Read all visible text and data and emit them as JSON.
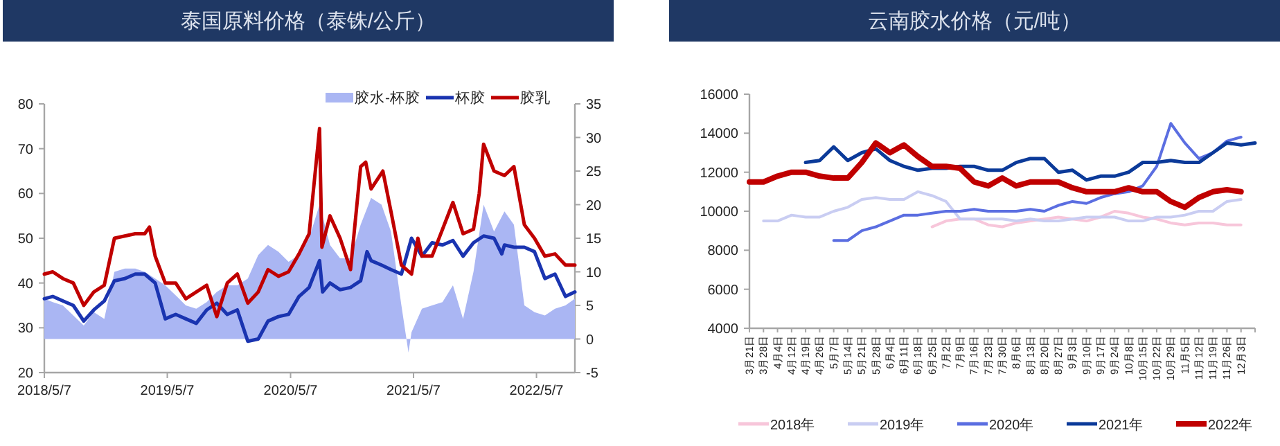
{
  "chart_data": [
    {
      "type": "line",
      "title": "泰国原料价格（泰铢/公斤）",
      "legend": "top right",
      "xlim": [
        "2018-05-07",
        "2022-08-29"
      ],
      "xticks": [
        {
          "value": "2018-05-07",
          "label": "2018/5/7"
        },
        {
          "value": "2019-05-07",
          "label": "2019/5/7"
        },
        {
          "value": "2020-05-07",
          "label": "2020/5/7"
        },
        {
          "value": "2021-05-07",
          "label": "2021/5/7"
        },
        {
          "value": "2022-05-07",
          "label": "2022/5/7"
        }
      ],
      "ylim": [
        20,
        80
      ],
      "yticks": [
        20,
        30,
        40,
        50,
        60,
        70,
        80
      ],
      "y2lim": [
        -5,
        35
      ],
      "y2ticks": [
        -5,
        0,
        5,
        10,
        15,
        20,
        25,
        30,
        35
      ],
      "series": [
        {
          "name": "胶水-杯胶",
          "type": "area",
          "axis": "y2",
          "color": "#aab6f3",
          "x": [
            "2018-05-07",
            "2018-06-01",
            "2018-07-01",
            "2018-08-01",
            "2018-09-01",
            "2018-10-01",
            "2018-11-01",
            "2018-12-01",
            "2019-01-01",
            "2019-02-01",
            "2019-03-01",
            "2019-04-01",
            "2019-05-01",
            "2019-06-01",
            "2019-07-01",
            "2019-08-01",
            "2019-09-01",
            "2019-10-01",
            "2019-11-01",
            "2019-12-01",
            "2020-01-01",
            "2020-02-01",
            "2020-03-01",
            "2020-04-01",
            "2020-05-01",
            "2020-06-01",
            "2020-07-01",
            "2020-08-01",
            "2020-09-01",
            "2020-10-01",
            "2020-11-01",
            "2020-12-01",
            "2021-01-01",
            "2021-02-01",
            "2021-03-01",
            "2021-04-01",
            "2021-04-22",
            "2021-05-01",
            "2021-06-01",
            "2021-07-01",
            "2021-08-01",
            "2021-09-01",
            "2021-10-01",
            "2021-11-01",
            "2021-12-01",
            "2022-01-01",
            "2022-02-01",
            "2022-03-01",
            "2022-04-01",
            "2022-05-01",
            "2022-06-01",
            "2022-07-01",
            "2022-08-01",
            "2022-08-29"
          ],
          "values": [
            6,
            5.5,
            5,
            3.5,
            2,
            4,
            3,
            10,
            10.5,
            10.5,
            10,
            9,
            8,
            6.5,
            5,
            4.5,
            5.5,
            7,
            8,
            8,
            9,
            12.5,
            14,
            13,
            11.5,
            12.5,
            15,
            20,
            14,
            12,
            12,
            17,
            21,
            20,
            16,
            5,
            -2,
            1,
            4.5,
            5,
            5.5,
            8,
            3,
            10,
            20,
            16,
            19,
            17,
            5,
            4,
            3.5,
            4.5,
            5,
            6
          ]
        },
        {
          "name": "杯胶",
          "color": "#1a34b0",
          "x": [
            "2018-05-07",
            "2018-06-01",
            "2018-07-01",
            "2018-08-01",
            "2018-09-01",
            "2018-10-01",
            "2018-11-01",
            "2018-12-01",
            "2019-01-01",
            "2019-02-01",
            "2019-03-01",
            "2019-04-01",
            "2019-05-01",
            "2019-06-01",
            "2019-07-01",
            "2019-08-01",
            "2019-09-01",
            "2019-10-01",
            "2019-11-01",
            "2019-12-01",
            "2020-01-01",
            "2020-02-01",
            "2020-03-01",
            "2020-04-01",
            "2020-05-01",
            "2020-06-01",
            "2020-07-01",
            "2020-08-01",
            "2020-08-10",
            "2020-09-01",
            "2020-10-01",
            "2020-11-01",
            "2020-12-01",
            "2020-12-20",
            "2021-01-01",
            "2021-02-01",
            "2021-03-01",
            "2021-04-01",
            "2021-05-01",
            "2021-06-01",
            "2021-07-01",
            "2021-08-01",
            "2021-09-01",
            "2021-10-01",
            "2021-11-01",
            "2021-12-01",
            "2022-01-01",
            "2022-01-24",
            "2022-02-01",
            "2022-03-01",
            "2022-04-01",
            "2022-05-01",
            "2022-06-01",
            "2022-07-01",
            "2022-08-01",
            "2022-08-29"
          ],
          "values": [
            36.5,
            37,
            36,
            35,
            31.5,
            34,
            36,
            40.5,
            41,
            42,
            42,
            40,
            32,
            33,
            32,
            31,
            34,
            35.5,
            33,
            34,
            27,
            27.5,
            31.5,
            32.5,
            33,
            37,
            39,
            45,
            38,
            40,
            38.5,
            39,
            40.5,
            47,
            45,
            44,
            43,
            42,
            50,
            46,
            49,
            48.5,
            49.5,
            46,
            49,
            50.5,
            50,
            46.5,
            48.5,
            48,
            48,
            47,
            41,
            42,
            37,
            38
          ]
        },
        {
          "name": "胶乳",
          "color": "#c00000",
          "x": [
            "2018-05-07",
            "2018-06-01",
            "2018-07-01",
            "2018-08-01",
            "2018-09-01",
            "2018-10-01",
            "2018-11-01",
            "2018-12-01",
            "2019-01-01",
            "2019-02-01",
            "2019-03-01",
            "2019-03-15",
            "2019-04-01",
            "2019-05-01",
            "2019-06-01",
            "2019-07-01",
            "2019-08-01",
            "2019-09-01",
            "2019-10-01",
            "2019-11-01",
            "2019-12-01",
            "2020-01-01",
            "2020-02-01",
            "2020-03-01",
            "2020-04-01",
            "2020-05-01",
            "2020-06-01",
            "2020-07-01",
            "2020-08-01",
            "2020-08-08",
            "2020-09-01",
            "2020-10-01",
            "2020-11-01",
            "2020-12-01",
            "2020-12-16",
            "2021-01-01",
            "2021-02-05",
            "2021-03-01",
            "2021-04-01",
            "2021-05-01",
            "2021-05-20",
            "2021-06-01",
            "2021-07-01",
            "2021-08-01",
            "2021-09-01",
            "2021-10-01",
            "2021-11-01",
            "2021-11-18",
            "2021-12-01",
            "2022-01-01",
            "2022-02-01",
            "2022-03-01",
            "2022-04-01",
            "2022-05-01",
            "2022-06-01",
            "2022-07-01",
            "2022-08-01",
            "2022-08-29"
          ],
          "values": [
            42,
            42.5,
            41,
            40,
            35,
            38,
            39.5,
            50,
            50.5,
            51,
            51,
            52.5,
            46,
            40,
            40,
            36.5,
            38,
            39.5,
            32.5,
            40,
            42,
            35.5,
            38,
            43,
            41.5,
            42.5,
            46.5,
            51,
            74.5,
            48,
            55,
            50,
            43,
            66,
            67,
            61,
            65,
            56,
            44,
            42,
            50,
            46,
            46,
            52,
            58,
            51,
            52,
            60,
            71,
            65,
            64,
            66,
            53,
            50,
            46,
            46.5,
            44,
            44
          ]
        }
      ]
    },
    {
      "type": "line",
      "title": "云南胶水价格（元/吨）",
      "legend": "bottom",
      "categories": [
        "3月21日",
        "3月28日",
        "4月4日",
        "4月12日",
        "4月19日",
        "4月26日",
        "5月7日",
        "5月14日",
        "5月21日",
        "5月28日",
        "6月4日",
        "6月11日",
        "6月18日",
        "6月25日",
        "7月2日",
        "7月9日",
        "7月16日",
        "7月23日",
        "7月30日",
        "8月6日",
        "8月13日",
        "8月20日",
        "8月27日",
        "9月3日",
        "9月10日",
        "9月17日",
        "9月24日",
        "10月8日",
        "10月15日",
        "10月22日",
        "10月29日",
        "11月5日",
        "11月12日",
        "11月19日",
        "11月26日",
        "12月3日",
        null
      ],
      "ylim": [
        4000,
        16000
      ],
      "yticks": [
        4000,
        6000,
        8000,
        10000,
        12000,
        14000,
        16000
      ],
      "series": [
        {
          "name": "2018年",
          "color": "#f7c6da",
          "values": [
            null,
            null,
            null,
            null,
            null,
            null,
            null,
            null,
            null,
            null,
            null,
            null,
            null,
            9200,
            9500,
            9600,
            9600,
            9300,
            9200,
            9400,
            9500,
            9600,
            9700,
            9600,
            9500,
            9700,
            10000,
            9900,
            9700,
            9600,
            9400,
            9300,
            9400,
            9400,
            9300,
            9300,
            null
          ]
        },
        {
          "name": "2019年",
          "color": "#c9cdf2",
          "values": [
            null,
            9500,
            9500,
            9800,
            9700,
            9700,
            10000,
            10200,
            10600,
            10700,
            10600,
            10600,
            11000,
            10800,
            10500,
            9600,
            9600,
            9600,
            9600,
            9500,
            9600,
            9500,
            9500,
            9600,
            9700,
            9700,
            9700,
            9500,
            9500,
            9700,
            9700,
            9800,
            10000,
            10000,
            10500,
            10600,
            null
          ]
        },
        {
          "name": "2020年",
          "color": "#5b6ee1",
          "values": [
            null,
            null,
            null,
            null,
            null,
            null,
            8500,
            8500,
            9000,
            9200,
            9500,
            9800,
            9800,
            9900,
            10000,
            10000,
            10100,
            10000,
            10000,
            10000,
            10100,
            10000,
            10300,
            10500,
            10400,
            10700,
            10900,
            11000,
            11300,
            12300,
            14500,
            13500,
            12700,
            13000,
            13600,
            13800,
            null
          ]
        },
        {
          "name": "2021年",
          "color": "#0b3a99",
          "values": [
            null,
            null,
            null,
            null,
            12500,
            12600,
            13300,
            12600,
            13000,
            13200,
            12600,
            12300,
            12100,
            12200,
            12200,
            12300,
            12300,
            12100,
            12100,
            12500,
            12700,
            12700,
            12000,
            12100,
            11600,
            11800,
            11800,
            12000,
            12500,
            12500,
            12600,
            12500,
            12500,
            13000,
            13500,
            13400,
            13500
          ]
        },
        {
          "name": "2022年",
          "color": "#c00000",
          "values": [
            11500,
            11500,
            11800,
            12000,
            12000,
            11800,
            11700,
            11700,
            12500,
            13500,
            13000,
            13400,
            12800,
            12300,
            12300,
            12200,
            11500,
            11300,
            11700,
            11300,
            11500,
            11500,
            11500,
            11200,
            11000,
            11000,
            11000,
            11200,
            11000,
            11000,
            10500,
            10200,
            10700,
            11000,
            11100,
            11000,
            null
          ]
        }
      ]
    }
  ]
}
